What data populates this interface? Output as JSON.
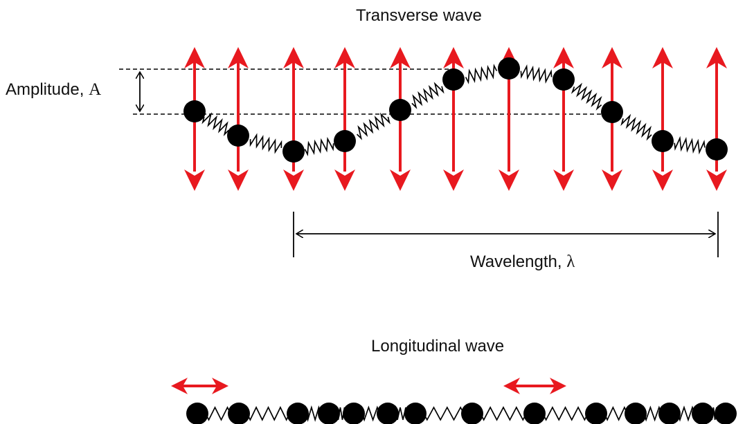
{
  "titles": {
    "transverse": "Transverse wave",
    "longitudinal": "Longitudinal wave"
  },
  "labels": {
    "amplitude": "Amplitude,",
    "amplitude_symbol": "A",
    "wavelength": "Wavelength,",
    "wavelength_symbol": "λ"
  },
  "colors": {
    "arrow": "#e8191f",
    "particle": "#000000",
    "spring": "#000000",
    "dashed": "#000000"
  }
}
